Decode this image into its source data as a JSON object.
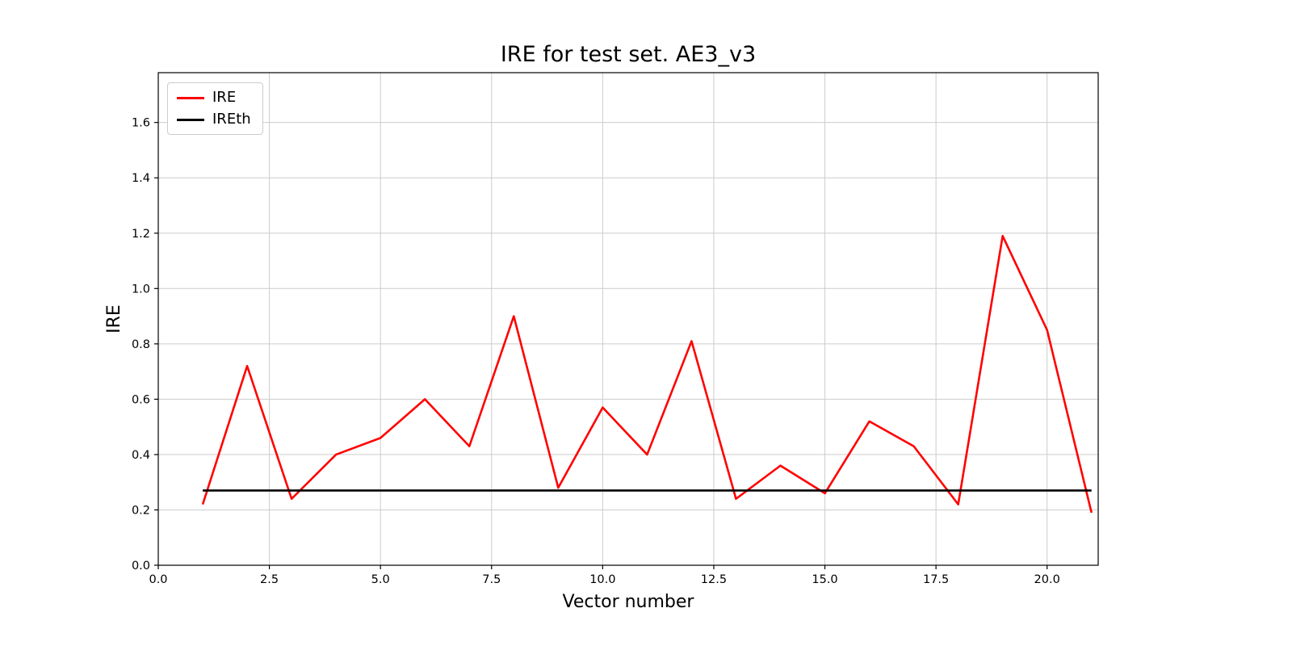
{
  "chart_data": {
    "type": "line",
    "title": "IRE for test set. AE3_v3",
    "xlabel": "Vector number",
    "ylabel": "IRE",
    "xlim": [
      0,
      21.15
    ],
    "ylim": [
      0,
      1.78
    ],
    "xticks": [
      0.0,
      2.5,
      5.0,
      7.5,
      10.0,
      12.5,
      15.0,
      17.5,
      20.0
    ],
    "yticks": [
      0.0,
      0.2,
      0.4,
      0.6,
      0.8,
      1.0,
      1.2,
      1.4,
      1.6
    ],
    "grid": true,
    "grid_color": "#cccccc",
    "legend_position": "upper left",
    "x": [
      1,
      2,
      3,
      4,
      5,
      6,
      7,
      8,
      9,
      10,
      11,
      12,
      13,
      14,
      15,
      16,
      17,
      18,
      19,
      20,
      21
    ],
    "series": [
      {
        "name": "IRE",
        "color": "#ff0000",
        "values": [
          0.22,
          0.72,
          0.24,
          0.4,
          0.46,
          0.6,
          0.43,
          0.9,
          0.28,
          0.57,
          0.4,
          0.81,
          0.24,
          0.36,
          0.26,
          0.52,
          0.43,
          0.22,
          1.19,
          0.85,
          0.19
        ]
      },
      {
        "name": "IREth",
        "color": "#000000",
        "values": [
          0.27,
          0.27,
          0.27,
          0.27,
          0.27,
          0.27,
          0.27,
          0.27,
          0.27,
          0.27,
          0.27,
          0.27,
          0.27,
          0.27,
          0.27,
          0.27,
          0.27,
          0.27,
          0.27,
          0.27,
          0.27
        ]
      }
    ]
  }
}
